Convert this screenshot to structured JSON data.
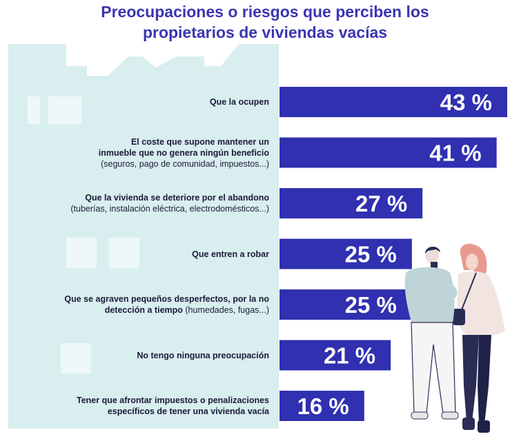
{
  "title_line1": "Preocupaciones o riesgos que perciben los",
  "title_line2": "propietarios de viviendas vacías",
  "colors": {
    "title": "#3a35b3",
    "bar": "#3030b0",
    "bar_text": "#ffffff",
    "house": "#d9eeee",
    "window": "#eef8f8"
  },
  "rows": [
    {
      "lines": [
        {
          "main": "Que la ocupen",
          "sub": ""
        }
      ]
    },
    {
      "lines": [
        {
          "main": "El coste que supone mantener un",
          "sub": ""
        },
        {
          "main": "inmueble que no genera ningún beneficio",
          "sub": ""
        },
        {
          "main": "",
          "sub": "(seguros, pago de comunidad, impuestos...)"
        }
      ]
    },
    {
      "lines": [
        {
          "main": "Que la vivienda se deteriore por el abandono",
          "sub": ""
        },
        {
          "main": "",
          "sub": "(tuberías, instalación eléctrica, electrodomésticos...)"
        }
      ]
    },
    {
      "lines": [
        {
          "main": "Que entren a robar",
          "sub": ""
        }
      ]
    },
    {
      "lines": [
        {
          "main": "Que se agraven pequeños desperfectos, por la no",
          "sub": ""
        },
        {
          "main": "detección a tiempo",
          "sub": " (humedades, fugas...)"
        }
      ]
    },
    {
      "lines": [
        {
          "main": "No tengo ninguna preocupación",
          "sub": ""
        }
      ]
    },
    {
      "lines": [
        {
          "main": "Tener que afrontar impuestos o penalizaciones",
          "sub": ""
        },
        {
          "main": "específicos de tener una vivienda vacía",
          "sub": ""
        }
      ]
    }
  ],
  "chart_data": {
    "type": "bar",
    "orientation": "horizontal",
    "title": "Preocupaciones o riesgos que perciben los propietarios de viviendas vacías",
    "categories": [
      "Que la ocupen",
      "El coste que supone mantener un inmueble que no genera ningún beneficio (seguros, pago de comunidad, impuestos...)",
      "Que la vivienda se deteriore por el abandono (tuberías, instalación eléctrica, electrodomésticos...)",
      "Que entren a robar",
      "Que se agraven pequeños desperfectos, por la no detección a tiempo (humedades, fugas...)",
      "No tengo ninguna preocupación",
      "Tener que afrontar impuestos o penalizaciones específicos de tener una vivienda vacía"
    ],
    "values": [
      43,
      41,
      27,
      25,
      25,
      21,
      16
    ],
    "value_labels": [
      "43 %",
      "41 %",
      "27 %",
      "25 %",
      "25 %",
      "21 %",
      "16 %"
    ],
    "xlim": [
      0,
      43
    ],
    "grid": false
  }
}
